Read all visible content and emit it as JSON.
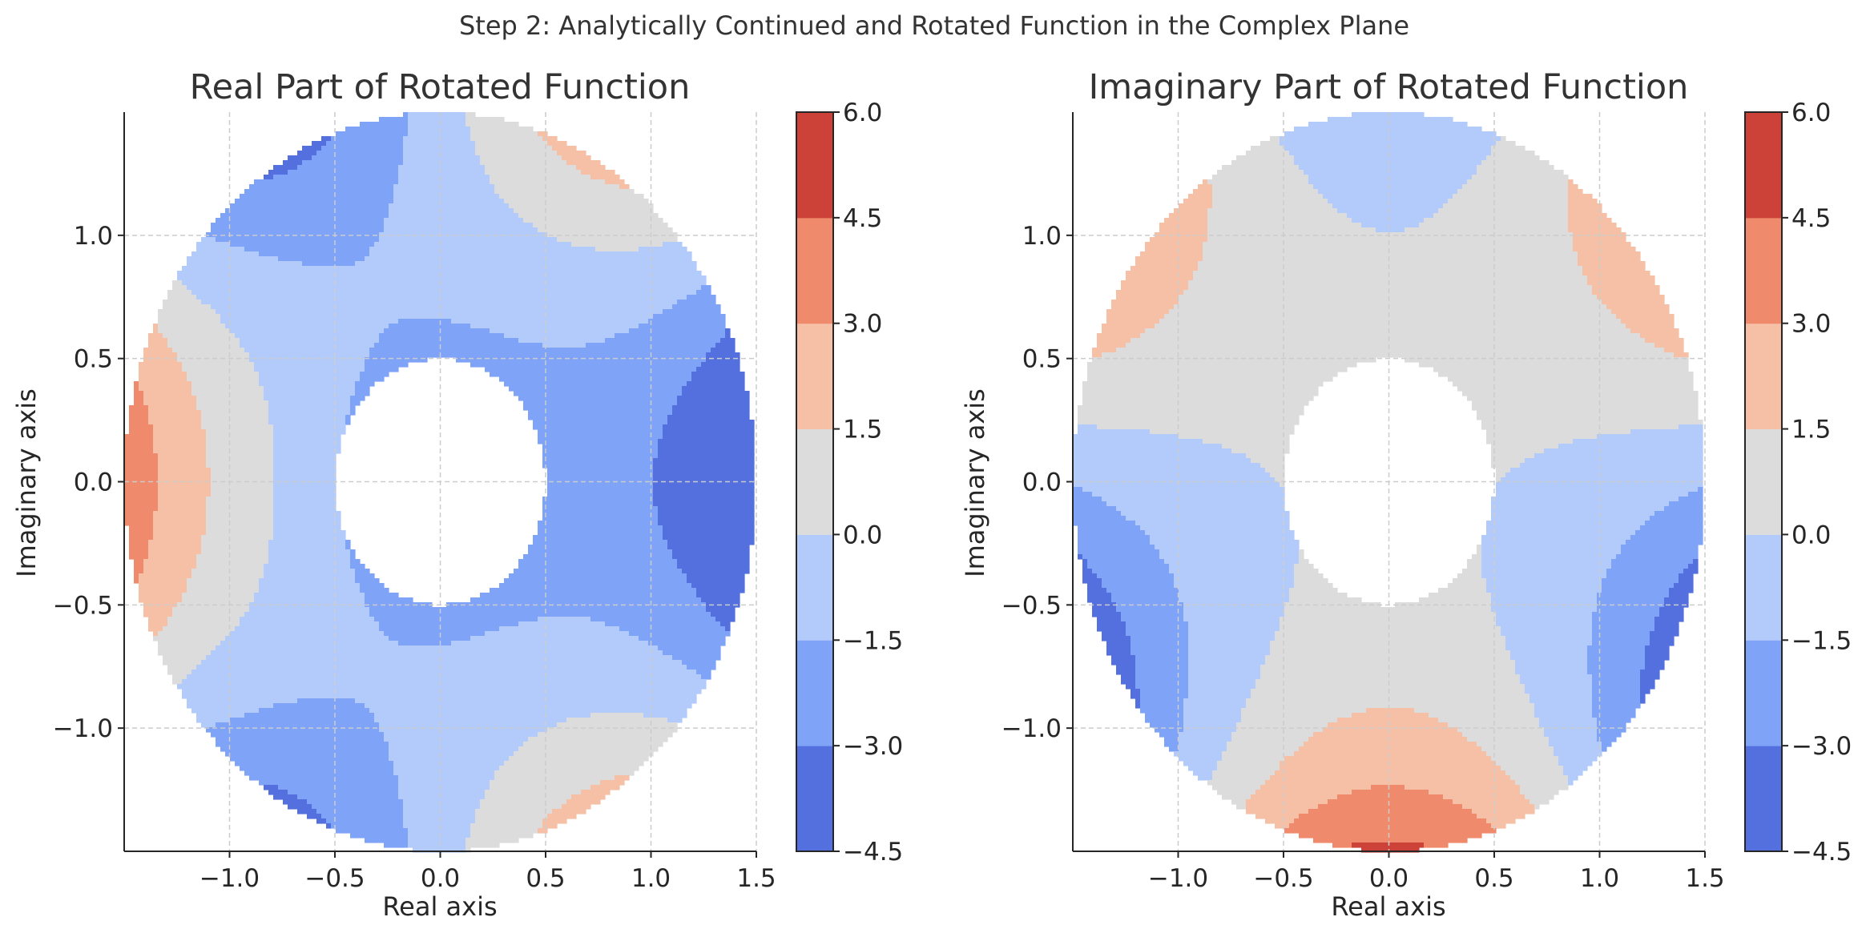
{
  "figure": {
    "suptitle": "Step 2: Analytically Continued and Rotated Function in the Complex Plane",
    "colormap": "coolwarm"
  },
  "chart_data": [
    {
      "type": "contour",
      "title": "Real Part of Rotated Function",
      "xlabel": "Real axis",
      "ylabel": "Imaginary axis",
      "xlim": [
        -1.5,
        1.5
      ],
      "ylim": [
        -1.5,
        1.5
      ],
      "xticks": [
        -1.0,
        -0.5,
        0.0,
        0.5,
        1.0,
        1.5
      ],
      "xtick_labels": [
        "−1.0",
        "−0.5",
        "0.0",
        "0.5",
        "1.0",
        "1.5"
      ],
      "yticks": [
        -1.0,
        -0.5,
        0.0,
        0.5,
        1.0
      ],
      "ytick_labels": [
        "−1.0",
        "−0.5",
        "0.0",
        "0.5",
        "1.0"
      ],
      "grid": true,
      "domain": "annulus",
      "inner_radius": 0.5,
      "outer_radius": 1.5,
      "colorbar": {
        "levels": [
          -4.5,
          -3.0,
          -1.5,
          0.0,
          1.5,
          3.0,
          4.5,
          6.0
        ],
        "labels": [
          "−4.5",
          "−3.0",
          "−1.5",
          "0.0",
          "1.5",
          "3.0",
          "4.5",
          "6.0"
        ]
      }
    },
    {
      "type": "contour",
      "title": "Imaginary Part of Rotated Function",
      "xlabel": "Real axis",
      "ylabel": "Imaginary axis",
      "xlim": [
        -1.5,
        1.5
      ],
      "ylim": [
        -1.5,
        1.5
      ],
      "xticks": [
        -1.0,
        -0.5,
        0.0,
        0.5,
        1.0,
        1.5
      ],
      "xtick_labels": [
        "−1.0",
        "−0.5",
        "0.0",
        "0.5",
        "1.0",
        "1.5"
      ],
      "yticks": [
        -1.0,
        -0.5,
        0.0,
        0.5,
        1.0
      ],
      "ytick_labels": [
        "−1.0",
        "−0.5",
        "0.0",
        "0.5",
        "1.0"
      ],
      "grid": true,
      "domain": "annulus",
      "inner_radius": 0.5,
      "outer_radius": 1.5,
      "colorbar": {
        "levels": [
          -4.5,
          -3.0,
          -1.5,
          0.0,
          1.5,
          3.0,
          4.5,
          6.0
        ],
        "labels": [
          "−4.5",
          "−3.0",
          "−1.5",
          "0.0",
          "1.5",
          "3.0",
          "4.5",
          "6.0"
        ]
      }
    }
  ],
  "colors": {
    "band_colors": [
      "#5470de",
      "#7fa3f7",
      "#b2cbfa",
      "#dcdcdc",
      "#f5c0a5",
      "#ef8a6c",
      "#cc4239"
    ]
  }
}
